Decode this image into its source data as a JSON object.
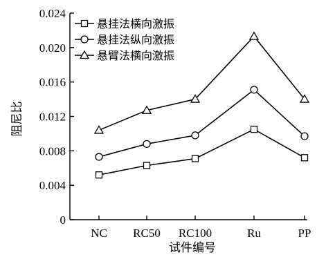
{
  "chart_data": {
    "type": "line",
    "xlabel": "试件编号",
    "ylabel": "阻尼比",
    "categories": [
      "NC",
      "RC50",
      "RC100",
      "Ru",
      "PP"
    ],
    "ylim": [
      0,
      0.024
    ],
    "yticks": [
      "0",
      "0.004",
      "0.008",
      "0.012",
      "0.016",
      "0.020",
      "0.024"
    ],
    "grid": false,
    "legend_position": "top-left",
    "series": [
      {
        "name": "悬挂法横向激振",
        "marker": "square",
        "values": [
          0.0052,
          0.0063,
          0.0071,
          0.0105,
          0.0072
        ]
      },
      {
        "name": "悬挂法纵向激振",
        "marker": "circle",
        "values": [
          0.0073,
          0.0088,
          0.0098,
          0.0151,
          0.0097
        ]
      },
      {
        "name": "悬臂法横向激振",
        "marker": "triangle",
        "values": [
          0.0104,
          0.0127,
          0.014,
          0.0213,
          0.014
        ]
      }
    ]
  }
}
